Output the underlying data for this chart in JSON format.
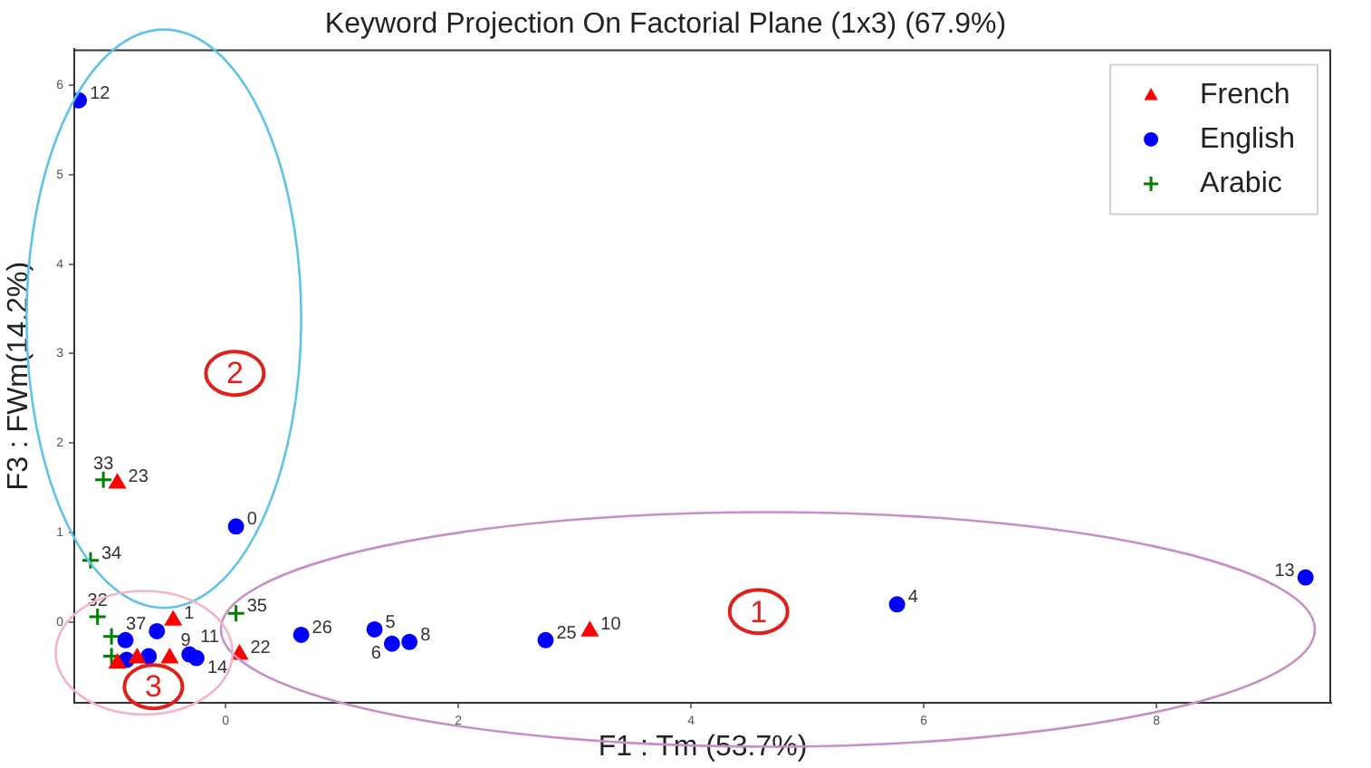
{
  "chart_data": {
    "type": "scatter",
    "title": "Keyword Projection On Factorial Plane (1x3) (67.9%)",
    "xlabel": "F1 : Tm (53.7%)",
    "ylabel": "F3 : FWm(14.2%)",
    "xlim": [
      -1.3,
      9.5
    ],
    "ylim": [
      -0.9,
      6.4
    ],
    "xticks": [
      0,
      2,
      4,
      6,
      8
    ],
    "yticks": [
      0,
      1,
      2,
      3,
      4,
      5,
      6
    ],
    "legend": "top right",
    "annotations": [
      "1",
      "2",
      "3",
      {
        "text": "23",
        "x": -0.93,
        "y": 1.55
      },
      {
        "text": "1",
        "x": -0.45,
        "y": 0.02
      },
      {
        "text": "9",
        "x": -0.48,
        "y": -0.4
      },
      {
        "text": "22",
        "x": 0.12,
        "y": -0.36
      },
      {
        "text": "10",
        "x": 3.13,
        "y": -0.1
      },
      {
        "text": "12",
        "x": -1.26,
        "y": 5.83
      },
      {
        "text": "0",
        "x": 0.09,
        "y": 1.07
      },
      {
        "text": "37",
        "x": -0.59,
        "y": -0.1
      },
      {
        "text": "11",
        "x": -0.31,
        "y": -0.36
      },
      {
        "text": "14",
        "x": -0.25,
        "y": -0.4
      },
      {
        "text": "26",
        "x": 0.65,
        "y": -0.14
      },
      {
        "text": "5",
        "x": 1.28,
        "y": -0.08
      },
      {
        "text": "6",
        "x": 1.43,
        "y": -0.24
      },
      {
        "text": "8",
        "x": 1.58,
        "y": -0.22
      },
      {
        "text": "25",
        "x": 2.75,
        "y": -0.2
      },
      {
        "text": "4",
        "x": 5.77,
        "y": 0.2
      },
      {
        "text": "13",
        "x": 9.28,
        "y": 0.5
      },
      {
        "text": "33",
        "x": -1.05,
        "y": 1.59
      },
      {
        "text": "34",
        "x": -1.16,
        "y": 0.69
      },
      {
        "text": "32",
        "x": -1.1,
        "y": 0.06
      },
      {
        "text": "35",
        "x": 0.09,
        "y": 0.1
      }
    ],
    "series": [
      {
        "name": "French",
        "color": "#ff0000",
        "marker": "triangle",
        "x": [
          -0.93,
          -0.45,
          -0.48,
          0.12,
          3.13,
          -0.93,
          -0.76
        ],
        "values": [
          1.55,
          0.02,
          -0.4,
          -0.36,
          -0.1,
          -0.46,
          -0.4
        ]
      },
      {
        "name": "English",
        "color": "#0000ff",
        "marker": "circle",
        "x": [
          -1.26,
          0.09,
          -0.59,
          -0.31,
          -0.25,
          0.65,
          1.28,
          1.43,
          1.58,
          2.75,
          5.77,
          9.28,
          -0.86,
          -0.85,
          -0.66
        ],
        "values": [
          5.83,
          1.07,
          -0.1,
          -0.36,
          -0.4,
          -0.14,
          -0.08,
          -0.24,
          -0.22,
          -0.2,
          0.2,
          0.5,
          -0.2,
          -0.42,
          -0.38
        ]
      },
      {
        "name": "Arabic",
        "color": "#008000",
        "marker": "cross",
        "x": [
          -1.05,
          -1.16,
          -1.1,
          0.09,
          -0.98,
          -0.98
        ],
        "values": [
          1.59,
          0.69,
          0.06,
          0.1,
          -0.16,
          -0.38
        ]
      }
    ]
  }
}
